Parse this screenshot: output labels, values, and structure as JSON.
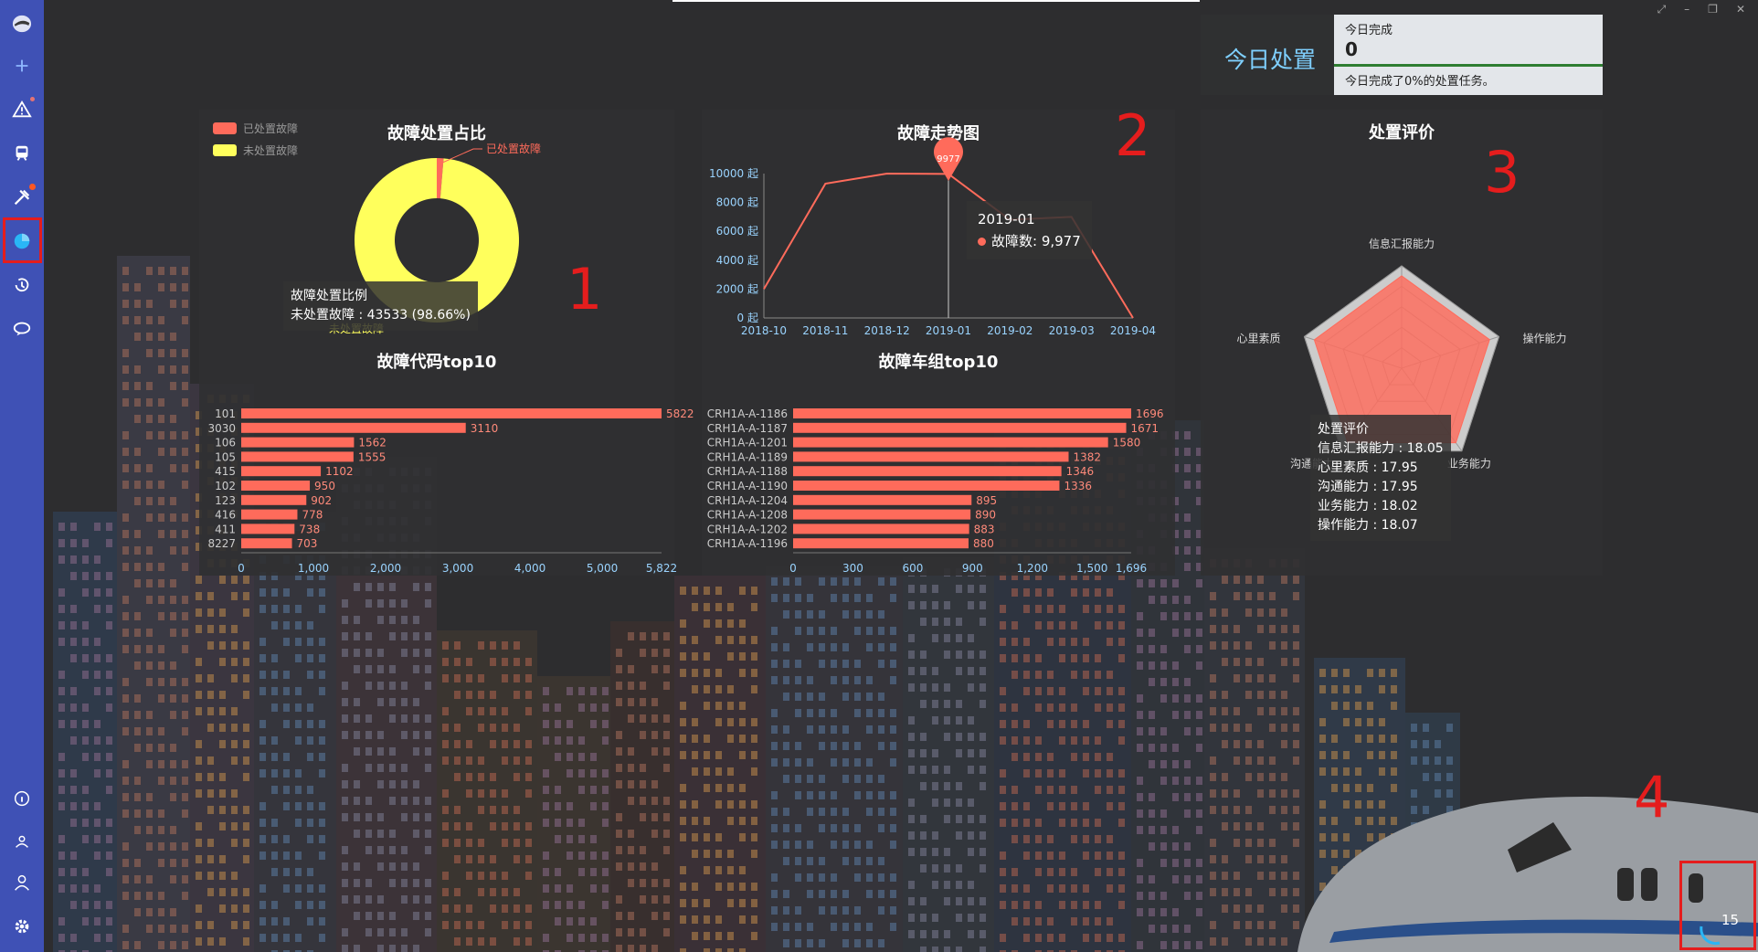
{
  "sidebar": {
    "items": [
      {
        "name": "logo-icon"
      },
      {
        "name": "add-icon"
      },
      {
        "name": "alert-icon"
      },
      {
        "name": "train-icon"
      },
      {
        "name": "tools-icon"
      },
      {
        "name": "pie-chart-icon"
      },
      {
        "name": "history-icon"
      },
      {
        "name": "chat-icon"
      },
      {
        "name": "info-icon"
      },
      {
        "name": "team-icon"
      },
      {
        "name": "user-icon"
      },
      {
        "name": "settings-icon"
      }
    ],
    "accent": "#3f51b5"
  },
  "today": {
    "title": "今日处置",
    "card_label": "今日完成",
    "card_value": "0",
    "card_desc": "今日完成了0%的处置任务。"
  },
  "annotations": [
    "1",
    "2",
    "3",
    "4"
  ],
  "counter": "15",
  "chart_data": [
    {
      "type": "pie",
      "title": "故障处置占比",
      "legend": [
        "已处置故障",
        "未处置故障"
      ],
      "legend_position": "top-left",
      "slices": [
        {
          "name": "已处置故障",
          "value": 586,
          "color": "#ff6b5b"
        },
        {
          "name": "未处置故障",
          "value": 43533,
          "color": "#ffff5c"
        }
      ],
      "tooltip": {
        "title": "故障处置比例",
        "line": "未处置故障 : 43533 (98.66%)"
      },
      "labels": [
        "已处置故障",
        "未处置故障"
      ]
    },
    {
      "type": "line",
      "title": "故障走势图",
      "x": [
        "2018-10",
        "2018-11",
        "2018-12",
        "2019-01",
        "2019-02",
        "2019-03",
        "2019-04"
      ],
      "y_ticks": [
        "0 起",
        "2000 起",
        "4000 起",
        "6000 起",
        "8000 起",
        "10000 起"
      ],
      "ylim": [
        0,
        10000
      ],
      "series": [
        {
          "name": "故障数",
          "values": [
            2000,
            9300,
            10000,
            9977,
            6800,
            7000,
            0
          ],
          "color": "#ff6b5b"
        }
      ],
      "marker": {
        "label": "9977"
      },
      "tooltip": {
        "title": "2019-01",
        "line": "故障数: 9,977"
      }
    },
    {
      "type": "bar",
      "title": "故障代码top10",
      "categories": [
        "101",
        "3030",
        "106",
        "105",
        "415",
        "102",
        "123",
        "416",
        "411",
        "8227"
      ],
      "values": [
        5822,
        3110,
        1562,
        1555,
        1102,
        950,
        902,
        778,
        738,
        703
      ],
      "value_labels": [
        "5822",
        "3110",
        "1562",
        "1555",
        "1102",
        "950",
        "902",
        "778",
        "738",
        "703"
      ],
      "x_ticks": [
        "0",
        "1,000",
        "2,000",
        "3,000",
        "4,000",
        "5,000",
        "5,822"
      ],
      "xlim": [
        0,
        5822
      ],
      "color": "#ff6b5b"
    },
    {
      "type": "bar",
      "title": "故障车组top10",
      "categories": [
        "CRH1A-A-1186",
        "CRH1A-A-1187",
        "CRH1A-A-1201",
        "CRH1A-A-1189",
        "CRH1A-A-1188",
        "CRH1A-A-1190",
        "CRH1A-A-1204",
        "CRH1A-A-1208",
        "CRH1A-A-1202",
        "CRH1A-A-1196"
      ],
      "values": [
        1696,
        1671,
        1580,
        1382,
        1346,
        1336,
        895,
        890,
        883,
        880
      ],
      "value_labels": [
        "1696",
        "1671",
        "1580",
        "1382",
        "1346",
        "1336",
        "895",
        "890",
        "883",
        "880"
      ],
      "x_ticks": [
        "0",
        "300",
        "600",
        "900",
        "1,200",
        "1,500",
        "1,696"
      ],
      "xlim": [
        0,
        1696
      ],
      "color": "#ff6b5b"
    },
    {
      "type": "radar",
      "title": "处置评价",
      "indicators": [
        "信息汇报能力",
        "操作能力",
        "业务能力",
        "沟通能力",
        "心里素质"
      ],
      "max": 20,
      "series": [
        {
          "name": "处置评价",
          "values": [
            18.05,
            18.07,
            18.02,
            17.95,
            17.95
          ],
          "color": "#ff6b5b"
        }
      ],
      "tooltip": {
        "title": "处置评价",
        "lines": [
          "信息汇报能力 : 18.05",
          "心里素质 : 17.95",
          "沟通能力 : 17.95",
          "业务能力 : 18.02",
          "操作能力 : 18.07"
        ]
      }
    }
  ]
}
